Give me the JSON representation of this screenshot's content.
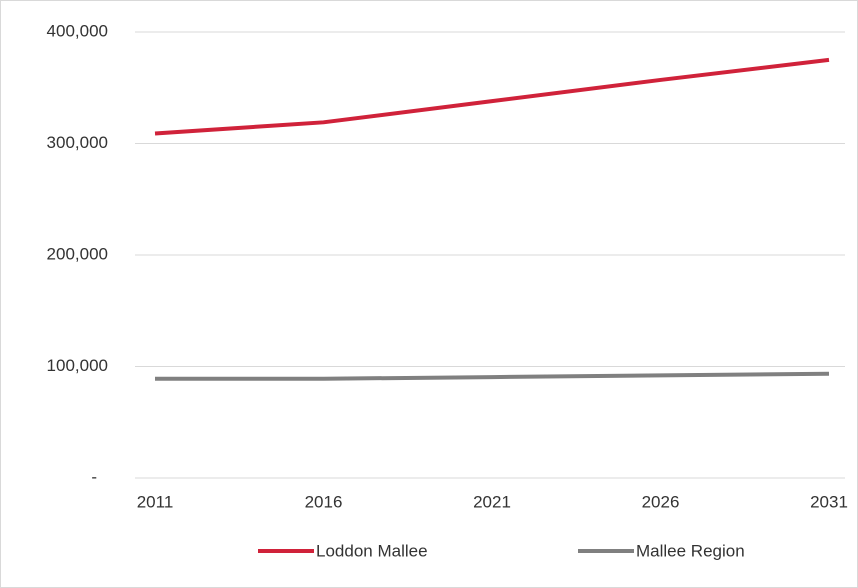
{
  "chart_data": {
    "type": "line",
    "x": [
      2011,
      2016,
      2021,
      2026,
      2031
    ],
    "xlim": [
      2011,
      2031
    ],
    "xticks": [
      2011,
      2016,
      2021,
      2026,
      2031
    ],
    "ylim": [
      0,
      400000
    ],
    "yticks": [
      {
        "value": 0,
        "label": "-"
      },
      {
        "value": 100000,
        "label": "100,000"
      },
      {
        "value": 200000,
        "label": "200,000"
      },
      {
        "value": 300000,
        "label": "300,000"
      },
      {
        "value": 400000,
        "label": "400,000"
      }
    ],
    "grid": true,
    "legend": "bottom",
    "series": [
      {
        "name": "Loddon Mallee",
        "color": "#d0223a",
        "values": [
          309000,
          319000,
          338000,
          357000,
          375000
        ]
      },
      {
        "name": "Mallee Region",
        "color": "#808080",
        "values": [
          89000,
          89000,
          90500,
          92000,
          93500
        ]
      }
    ]
  }
}
